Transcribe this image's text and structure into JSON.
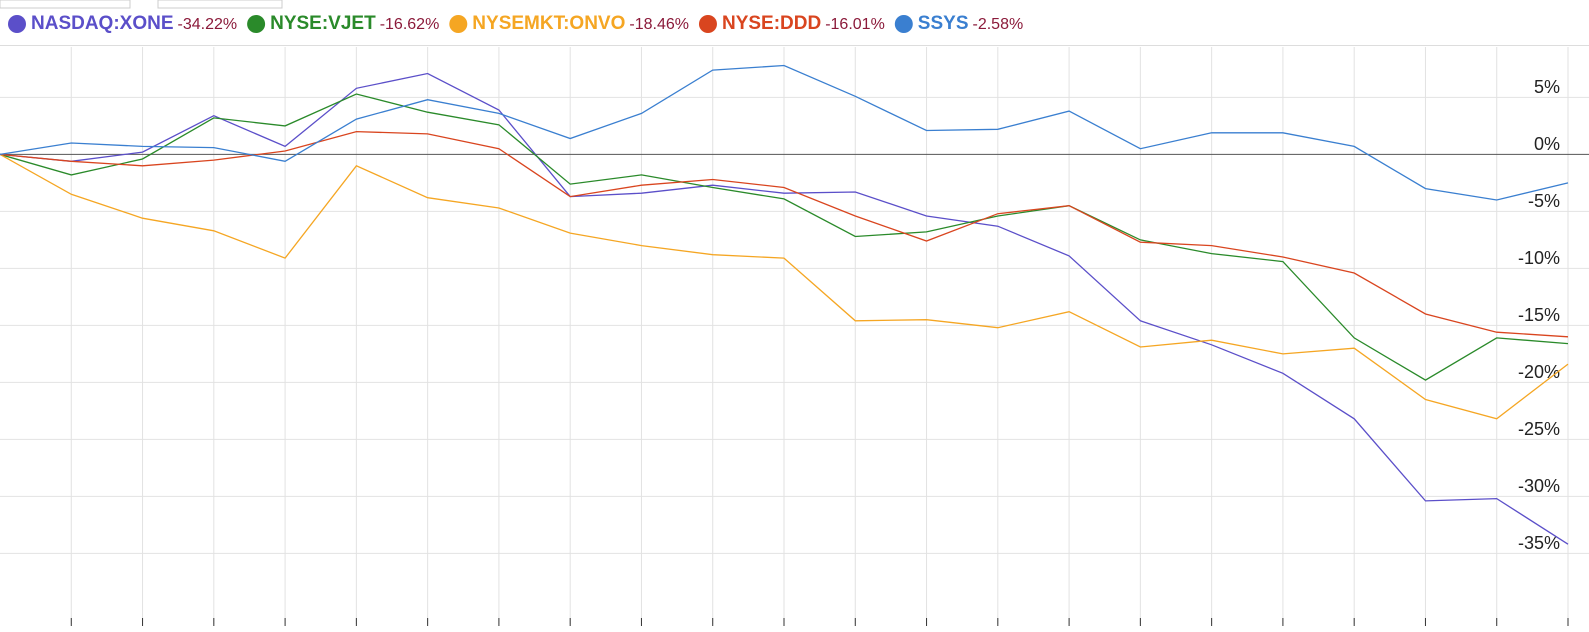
{
  "chart_data": {
    "type": "line",
    "categories": [
      null,
      null,
      null,
      null,
      null,
      null,
      null,
      null,
      null,
      null,
      null,
      null,
      null,
      null,
      null,
      null,
      null,
      null,
      null,
      null,
      null,
      null,
      null
    ],
    "series": [
      {
        "name": "NASDAQ:XONE",
        "change": "-34.22%",
        "color": "#5b4fc9",
        "values": [
          0,
          -0.6,
          0.2,
          3.4,
          0.7,
          5.8,
          7.1,
          3.9,
          -3.7,
          -3.4,
          -2.7,
          -3.4,
          -3.3,
          -5.4,
          -6.3,
          -8.9,
          -14.6,
          -16.7,
          -19.2,
          -23.2,
          -30.4,
          -30.2,
          -34.2
        ]
      },
      {
        "name": "NYSE:VJET",
        "change": "-16.62%",
        "color": "#2a8a2a",
        "values": [
          0,
          -1.8,
          -0.4,
          3.2,
          2.5,
          5.3,
          3.7,
          2.6,
          -2.6,
          -1.8,
          -2.9,
          -3.9,
          -7.2,
          -6.8,
          -5.4,
          -4.5,
          -7.5,
          -8.7,
          -9.4,
          -16.1,
          -19.8,
          -16.1,
          -16.6
        ]
      },
      {
        "name": "NYSEMKT:ONVO",
        "change": "-18.46%",
        "color": "#f5a623",
        "values": [
          0,
          -3.5,
          -5.6,
          -6.7,
          -9.1,
          -1.0,
          -3.8,
          -4.7,
          -6.9,
          -8.0,
          -8.8,
          -9.1,
          -14.6,
          -14.5,
          -15.2,
          -13.8,
          -16.9,
          -16.3,
          -17.5,
          -17.0,
          -21.5,
          -23.2,
          -18.4
        ]
      },
      {
        "name": "NYSE:DDD",
        "change": "-16.01%",
        "color": "#d9451f",
        "values": [
          0,
          -0.6,
          -1.0,
          -0.5,
          0.3,
          2.0,
          1.8,
          0.5,
          -3.7,
          -2.7,
          -2.2,
          -2.9,
          -5.4,
          -7.6,
          -5.2,
          -4.5,
          -7.7,
          -8.0,
          -9.0,
          -10.4,
          -14.0,
          -15.6,
          -16.0
        ]
      },
      {
        "name": "SSYS",
        "change": "-2.58%",
        "color": "#3a7fd0",
        "values": [
          0,
          1.0,
          0.7,
          0.6,
          -0.6,
          3.1,
          4.8,
          3.6,
          1.4,
          3.6,
          7.4,
          7.8,
          5.1,
          2.1,
          2.2,
          3.8,
          0.5,
          1.9,
          1.9,
          0.7,
          -3.0,
          -4.0,
          -2.5
        ]
      }
    ],
    "ylim": [
      -41.2,
      9.6
    ],
    "yticks": [
      {
        "value": 5,
        "label": "5%"
      },
      {
        "value": 0,
        "label": "0%"
      },
      {
        "value": -5,
        "label": "-5%"
      },
      {
        "value": -10,
        "label": "-10%"
      },
      {
        "value": -15,
        "label": "-15%"
      },
      {
        "value": -20,
        "label": "-20%"
      },
      {
        "value": -25,
        "label": "-25%"
      },
      {
        "value": -30,
        "label": "-30%"
      },
      {
        "value": -35,
        "label": "-35%"
      }
    ],
    "grid": true
  }
}
